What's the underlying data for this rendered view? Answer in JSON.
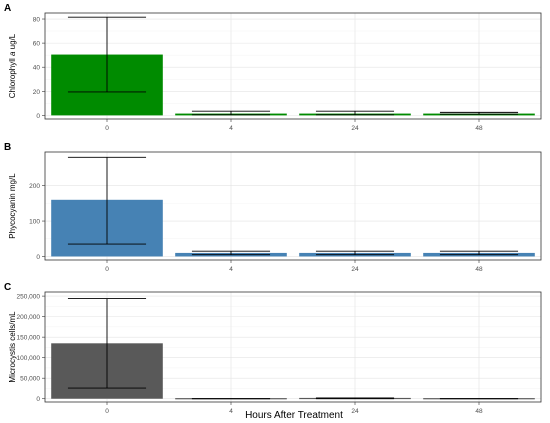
{
  "xlabel": "Hours After Treatment",
  "chart_data": [
    {
      "type": "bar",
      "panel_label": "A",
      "ylabel_prefix": "Chlorophyll ",
      "ylabel_italic": "a",
      "ylabel_suffix": " ug/L",
      "categories": [
        "0",
        "4",
        "24",
        "48"
      ],
      "values": [
        50.5,
        1.5,
        1.5,
        1.5
      ],
      "error_low": [
        19.5,
        0.5,
        0.5,
        1.0
      ],
      "error_high": [
        81.5,
        3.5,
        3.5,
        2.5
      ],
      "ylim": [
        -3,
        85
      ],
      "yticks": [
        0,
        20,
        40,
        60,
        80
      ],
      "ytick_labels": [
        "0",
        "20",
        "40",
        "60",
        "80"
      ],
      "color": "#008b00",
      "grid": true
    },
    {
      "type": "bar",
      "panel_label": "B",
      "ylabel_prefix": "Phycocyanin mg/L",
      "ylabel_italic": "",
      "ylabel_suffix": "",
      "categories": [
        "0",
        "4",
        "24",
        "48"
      ],
      "values": [
        160,
        10,
        10,
        10
      ],
      "error_low": [
        35,
        5,
        5,
        5
      ],
      "error_high": [
        280,
        15,
        15,
        15
      ],
      "ylim": [
        -10,
        295
      ],
      "yticks": [
        0,
        100,
        200
      ],
      "ytick_labels": [
        "0",
        "100",
        "200"
      ],
      "color": "#4682b4",
      "grid": true
    },
    {
      "type": "bar",
      "panel_label": "C",
      "ylabel_prefix": "Microcystis cells/mL",
      "ylabel_italic": "",
      "ylabel_suffix": "",
      "categories": [
        "0",
        "4",
        "24",
        "48"
      ],
      "values": [
        135000,
        0,
        1000,
        0
      ],
      "error_low": [
        26000,
        0,
        0,
        0
      ],
      "error_high": [
        244000,
        0,
        2000,
        0
      ],
      "ylim": [
        -8000,
        260000
      ],
      "yticks": [
        0,
        50000,
        100000,
        150000,
        200000,
        250000
      ],
      "ytick_labels": [
        "0",
        "50,000",
        "100,000",
        "150,000",
        "200,000",
        "250,000"
      ],
      "color": "#595959",
      "grid": true
    }
  ]
}
